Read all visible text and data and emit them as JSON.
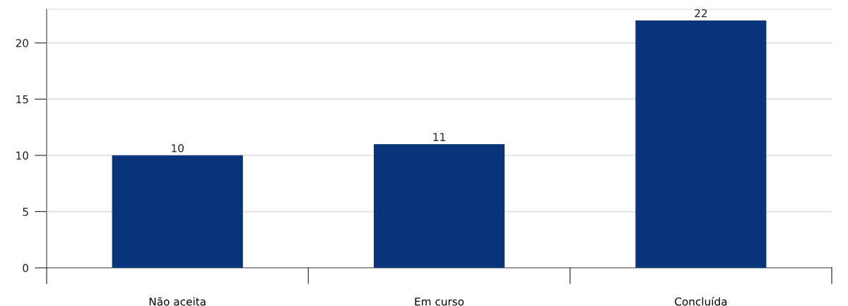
{
  "chart_data": {
    "type": "bar",
    "categories": [
      "Não aceita",
      "Em curso",
      "Concluída"
    ],
    "values": [
      10,
      11,
      22
    ],
    "color": "#0b357a",
    "ylim": [
      0,
      23
    ],
    "yticks": [
      0,
      5,
      10,
      15,
      20
    ],
    "grid": "y",
    "data_labels": true
  }
}
